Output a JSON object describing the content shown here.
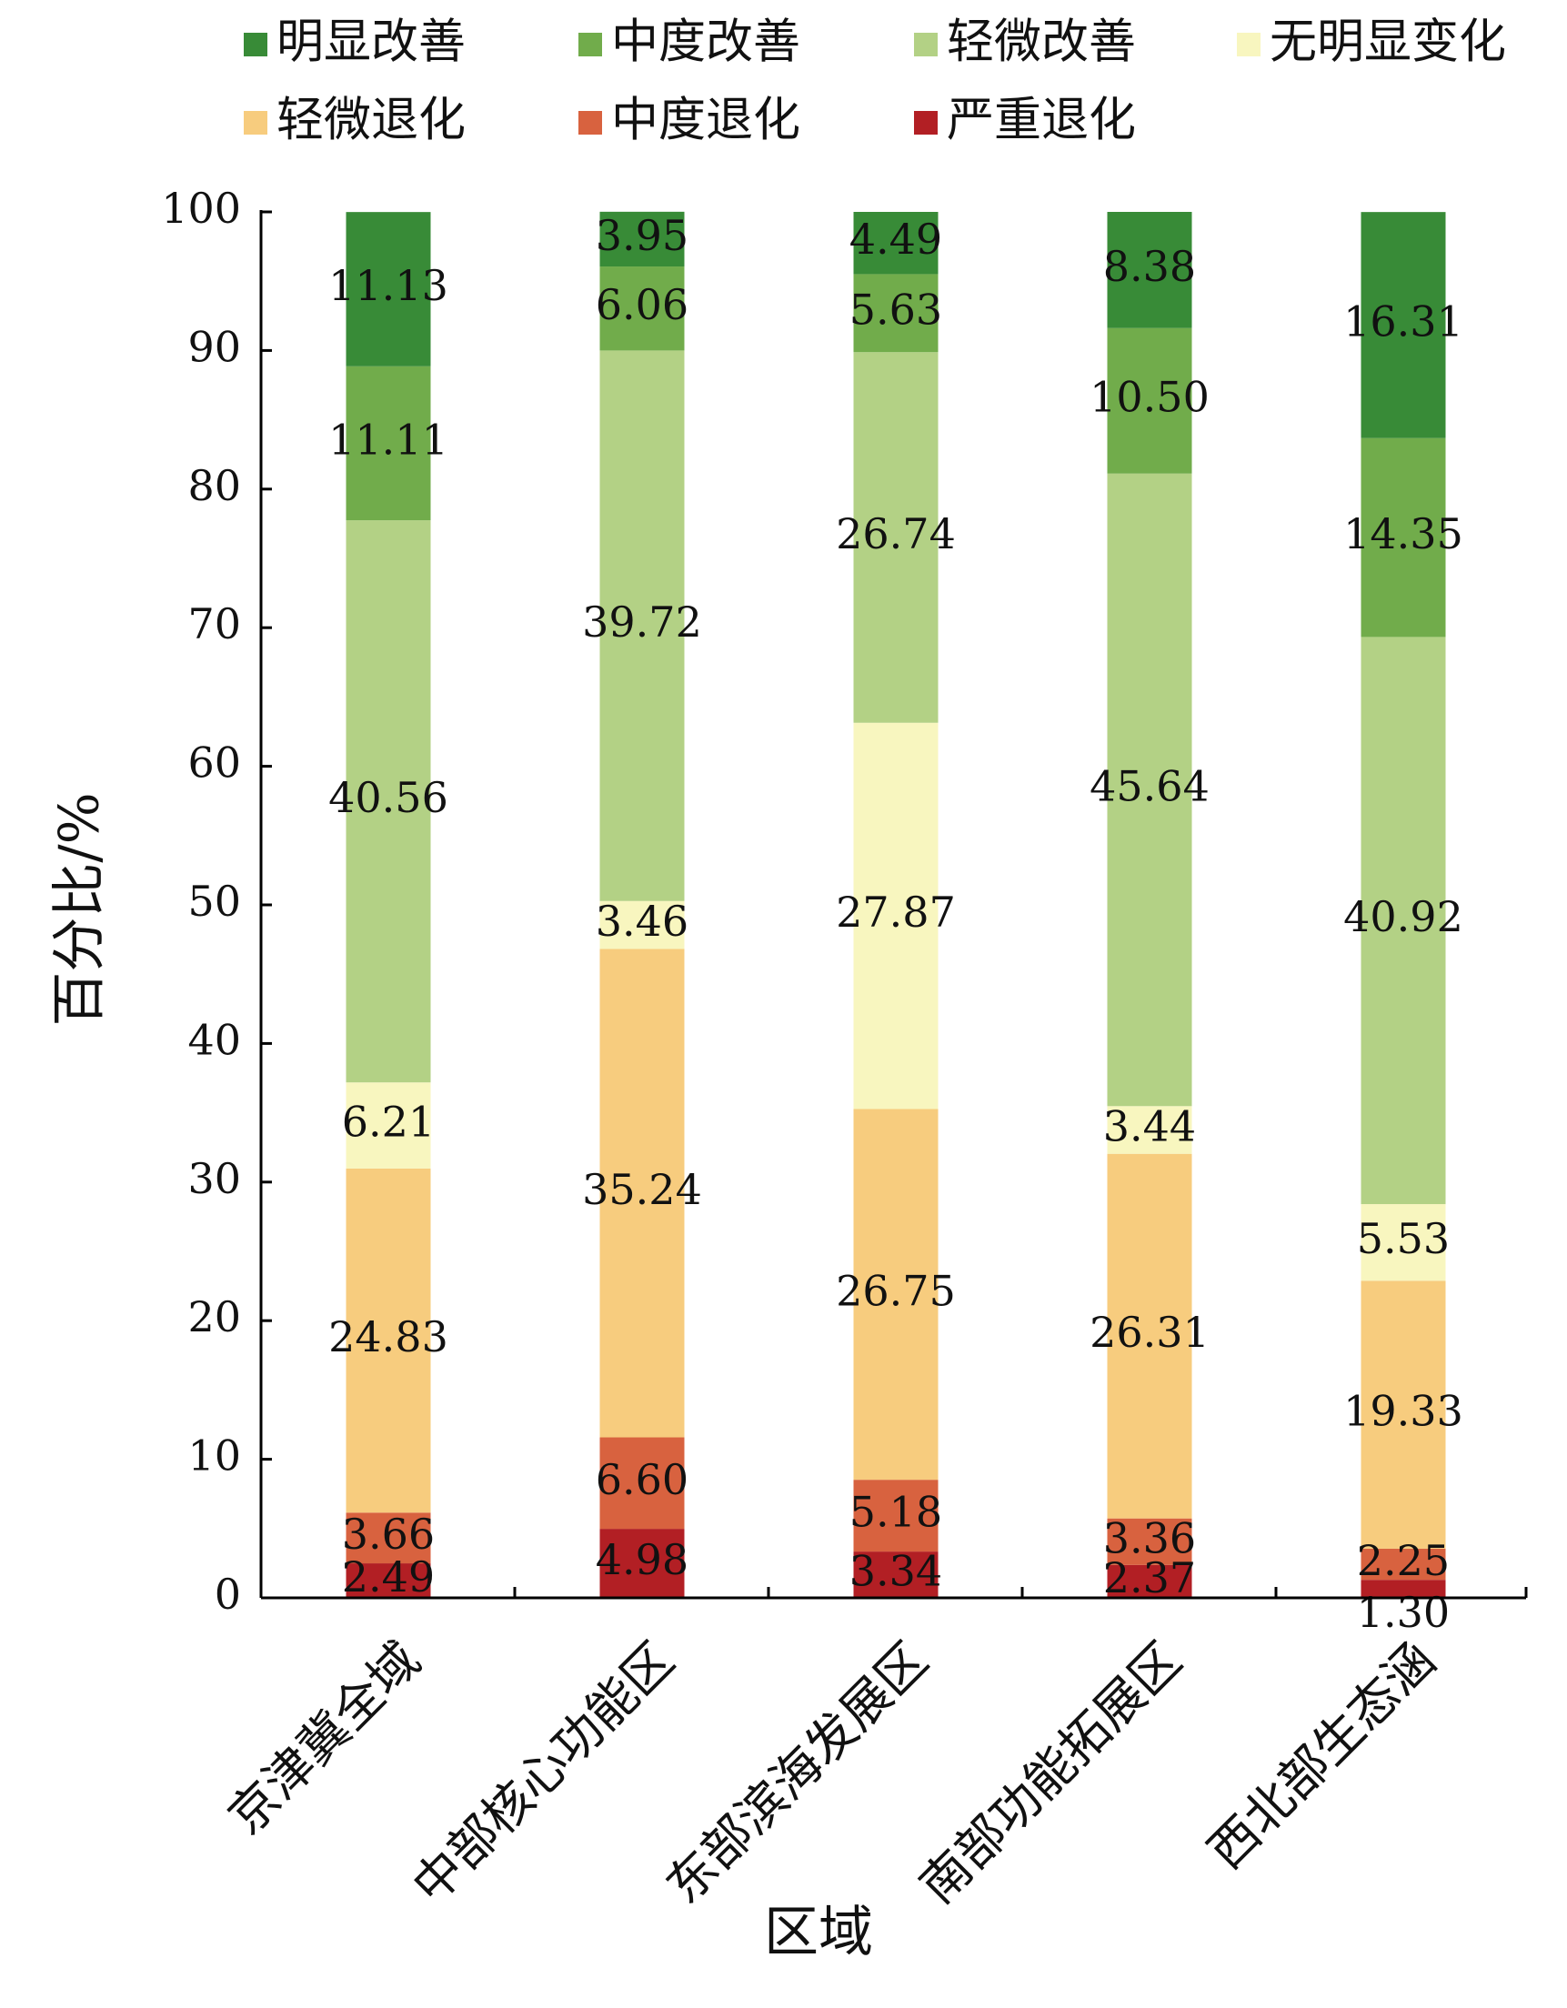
{
  "chart_data": {
    "type": "bar",
    "stacked": true,
    "title": "",
    "xlabel": "区域",
    "ylabel": "百分比/%",
    "ylim": [
      0,
      100
    ],
    "yticks": [
      0,
      10,
      20,
      30,
      40,
      50,
      60,
      70,
      80,
      90,
      100
    ],
    "ytick_labels": [
      "0",
      "10",
      "20",
      "30",
      "40",
      "50",
      "60",
      "70",
      "80",
      "90",
      "100"
    ],
    "grid": false,
    "legend_position": "top",
    "categories": [
      "京津冀全域",
      "中部核心功能区",
      "东部滨海发展区",
      "南部功能拓展区",
      "西北部生态涵"
    ],
    "series": [
      {
        "name": "严重退化",
        "color": "#b21f24",
        "values": [
          2.49,
          4.98,
          3.34,
          2.37,
          1.3
        ],
        "labels": [
          "2.49",
          "4.98",
          "3.34",
          "2.37",
          "1.30"
        ]
      },
      {
        "name": "中度退化",
        "color": "#d8623f",
        "values": [
          3.66,
          6.6,
          5.18,
          3.36,
          2.25
        ],
        "labels": [
          "3.66",
          "6.60",
          "5.18",
          "3.36",
          "2.25"
        ]
      },
      {
        "name": "轻微退化",
        "color": "#f7cc7e",
        "values": [
          24.83,
          35.24,
          26.75,
          26.31,
          19.33
        ],
        "labels": [
          "24.83",
          "35.24",
          "26.75",
          "26.31",
          "19.33"
        ]
      },
      {
        "name": "无明显变化",
        "color": "#f8f6bf",
        "values": [
          6.21,
          3.46,
          27.87,
          3.44,
          5.53
        ],
        "labels": [
          "6.21",
          "3.46",
          "27.87",
          "3.44",
          "5.53"
        ]
      },
      {
        "name": "轻微改善",
        "color": "#b3d185",
        "values": [
          40.56,
          39.72,
          26.74,
          45.64,
          40.92
        ],
        "labels": [
          "40.56",
          "39.72",
          "26.74",
          "45.64",
          "40.92"
        ]
      },
      {
        "name": "中度改善",
        "color": "#71ac4b",
        "values": [
          11.11,
          6.06,
          5.63,
          10.5,
          14.35
        ],
        "labels": [
          "11.11",
          "6.06",
          "5.63",
          "10.50",
          "14.35"
        ]
      },
      {
        "name": "明显改善",
        "color": "#388b37",
        "values": [
          11.13,
          3.95,
          4.49,
          8.38,
          16.31
        ],
        "labels": [
          "11.13",
          "3.95",
          "4.49",
          "8.38",
          "16.31"
        ]
      }
    ],
    "legend_order": [
      "明显改善",
      "中度改善",
      "轻微改善",
      "无明显变化",
      "轻微退化",
      "中度退化",
      "严重退化"
    ]
  }
}
